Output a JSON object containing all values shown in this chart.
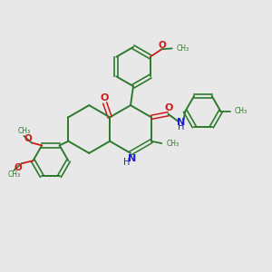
{
  "background_color": "#e8e8e8",
  "bond_color": "#2d7a2d",
  "nitrogen_color": "#1a1acc",
  "oxygen_color": "#cc1a1a",
  "figsize": [
    3.0,
    3.0
  ],
  "dpi": 100,
  "xlim": [
    0,
    10
  ],
  "ylim": [
    0,
    10
  ]
}
